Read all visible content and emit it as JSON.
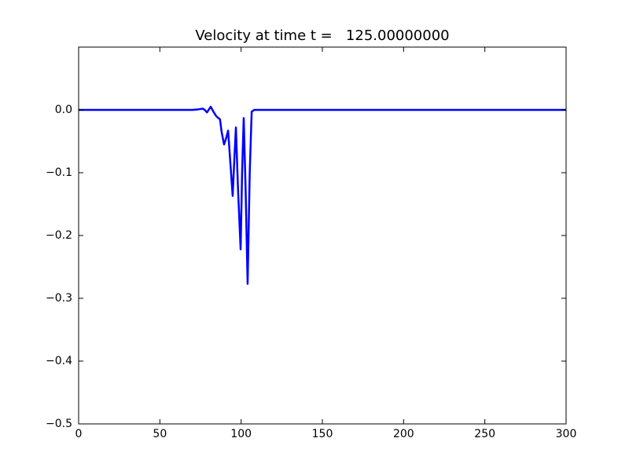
{
  "chart_data": {
    "type": "line",
    "title": "Velocity at time t =   125.00000000",
    "series": [
      {
        "color": "#0000ff",
        "x": [
          0,
          60,
          70,
          74,
          76.5,
          78,
          79,
          80,
          81.3,
          83,
          84.7,
          86,
          87,
          88,
          89.5,
          90.8,
          92,
          93,
          94.8,
          95.8,
          96.8,
          98,
          99.7,
          100.6,
          101.6,
          102.8,
          104,
          105.3,
          106.5,
          108,
          300
        ],
        "values": [
          0,
          0,
          0,
          0.001,
          0.002,
          -0.001,
          -0.004,
          0,
          0.005,
          -0.003,
          -0.01,
          -0.013,
          -0.015,
          -0.035,
          -0.055,
          -0.045,
          -0.033,
          -0.07,
          -0.137,
          -0.08,
          -0.028,
          -0.12,
          -0.222,
          -0.1,
          -0.013,
          -0.13,
          -0.277,
          -0.1,
          -0.003,
          0,
          0
        ]
      }
    ],
    "xlim": [
      0,
      300
    ],
    "xticks": [
      0,
      50,
      100,
      150,
      200,
      250,
      300
    ],
    "ylim": [
      -0.5,
      0.1
    ],
    "yticks": [
      {
        "value": -0.5,
        "label": "−0.5"
      },
      {
        "value": -0.4,
        "label": "−0.4"
      },
      {
        "value": -0.3,
        "label": "−0.3"
      },
      {
        "value": -0.2,
        "label": "−0.2"
      },
      {
        "value": -0.1,
        "label": "−0.1"
      },
      {
        "value": 0,
        "label": "0.0"
      }
    ],
    "grid": false
  }
}
